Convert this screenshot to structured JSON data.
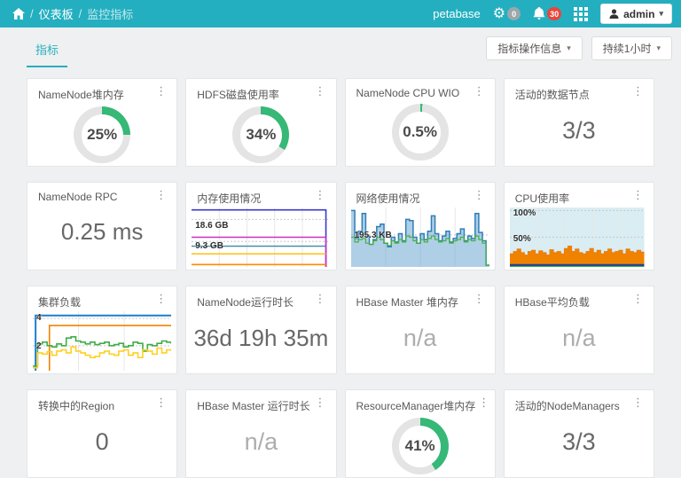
{
  "icons": {
    "kebab": "⋮",
    "caret": "▾",
    "gear": "⚙",
    "slash": "/"
  },
  "colors": {
    "accent": "#24afc0",
    "donut_green": "#36b877",
    "donut_track": "#e4e4e4"
  },
  "header": {
    "breadcrumb": {
      "item1": "仪表板",
      "item2": "监控指标"
    },
    "brand": "petabase",
    "gear_badge": "0",
    "bell_badge": "30",
    "user_label": "admin"
  },
  "toolbar": {
    "tab": "指标",
    "ops_button": "指标操作信息",
    "duration_button": "持续1小时"
  },
  "cards": [
    {
      "title": "NameNode堆内存",
      "type": "donut",
      "value": "25%",
      "percent": 25
    },
    {
      "title": "HDFS磁盘使用率",
      "type": "donut",
      "value": "34%",
      "percent": 34
    },
    {
      "title": "NameNode CPU WIO",
      "type": "donut",
      "value": "0.5%",
      "percent": 0.5
    },
    {
      "title": "活动的数据节点",
      "type": "number",
      "value": "3/3"
    },
    {
      "title": "NameNode RPC",
      "type": "number",
      "value": "0.25 ms"
    },
    {
      "title": "内存使用情况",
      "type": "chart",
      "labels": [
        {
          "text": "18.6 GB"
        },
        {
          "text": "9.3 GB"
        }
      ]
    },
    {
      "title": "网络使用情况",
      "type": "chart",
      "labels": [
        {
          "text": "195.3 KB"
        }
      ]
    },
    {
      "title": "CPU使用率",
      "type": "chart",
      "labels": [
        {
          "text": "100%"
        },
        {
          "text": "50%"
        }
      ]
    },
    {
      "title": "集群负载",
      "type": "chart",
      "labels": [
        {
          "text": "4"
        },
        {
          "text": "2"
        }
      ]
    },
    {
      "title": "NameNode运行时长",
      "type": "number",
      "value": "36d 19h 35m"
    },
    {
      "title": "HBase Master 堆内存",
      "type": "na",
      "value": "n/a"
    },
    {
      "title": "HBase平均负载",
      "type": "na",
      "value": "n/a"
    },
    {
      "title": "转换中的Region",
      "type": "number",
      "value": "0"
    },
    {
      "title": "HBase Master 运行时长",
      "type": "na",
      "value": "n/a"
    },
    {
      "title": "ResourceManager堆内存",
      "type": "donut",
      "value": "41%",
      "percent": 41
    },
    {
      "title": "活动的NodeManagers",
      "type": "number",
      "value": "3/3"
    }
  ],
  "chart_data": [
    {
      "type": "line",
      "title": "内存使用情况",
      "unit": "GB",
      "tick_labels": [
        "18.6 GB",
        "9.3 GB"
      ],
      "note": "flat horizontal usage lines; top two series drop to zero at right edge",
      "spec": {
        "vgrid": [
          20,
          40,
          60,
          80
        ],
        "hgrid": [
          20,
          57
        ],
        "series": [
          {
            "name": "total",
            "color": "#3939cf",
            "w": 1.6,
            "kind": "level",
            "level": 96,
            "xmax": 97,
            "drop": true
          },
          {
            "name": "used-hi",
            "color": "#cb2ecb",
            "w": 1.6,
            "kind": "level",
            "level": 50,
            "xmax": 97,
            "drop": true
          },
          {
            "name": "cached",
            "color": "#3a87ad",
            "w": 1.4,
            "kind": "level",
            "level": 35,
            "xmax": 97
          },
          {
            "name": "buffered",
            "color": "#ffc012",
            "w": 1.6,
            "kind": "level",
            "level": 22,
            "xmax": 97
          },
          {
            "name": "used-lo",
            "color": "#ff8b00",
            "w": 1.6,
            "kind": "level",
            "level": 4,
            "xmax": 97
          }
        ]
      }
    },
    {
      "type": "line",
      "title": "网络使用情况",
      "unit": "KB",
      "tick_labels": [
        "195.3 KB"
      ],
      "spec": {
        "vgrid": [
          25,
          50,
          75
        ],
        "hgrid": [
          46
        ],
        "series": [
          {
            "name": "in",
            "color": "#2e7fb8",
            "w": 1.5,
            "kind": "steps",
            "fill": "rgba(110,168,212,0.55)",
            "values": [
              95,
              48,
              60,
              90,
              52,
              38,
              46,
              68,
              72,
              40,
              34,
              50,
              42,
              56,
              44,
              80,
              78,
              50,
              40,
              56,
              46,
              60,
              86,
              56,
              44,
              52,
              60,
              42,
              48,
              56,
              64,
              44,
              52,
              48,
              90,
              58,
              44,
              3,
              3
            ]
          },
          {
            "name": "out",
            "color": "#43b13f",
            "w": 1.2,
            "kind": "steps",
            "values": [
              50,
              42,
              46,
              48,
              40,
              38,
              44,
              50,
              46,
              40,
              36,
              44,
              40,
              46,
              42,
              52,
              50,
              44,
              40,
              46,
              42,
              48,
              52,
              46,
              42,
              44,
              48,
              40,
              44,
              46,
              50,
              42,
              46,
              44,
              52,
              46,
              40,
              3,
              3
            ]
          }
        ]
      }
    },
    {
      "type": "area",
      "title": "CPU使用率",
      "unit": "%",
      "tick_labels": [
        "100%",
        "50%"
      ],
      "spec": {
        "bg": "#d9edf3",
        "right_gap": 3,
        "vgrid": [
          20,
          40,
          60,
          80
        ],
        "hgrid": [
          5,
          50
        ],
        "series": [
          {
            "name": "user",
            "color": "#e87d0d",
            "w": 1,
            "kind": "steps",
            "fill": "#f08200",
            "xmax": 97,
            "values": [
              22,
              26,
              30,
              24,
              20,
              26,
              28,
              22,
              27,
              24,
              20,
              29,
              24,
              26,
              22,
              31,
              35,
              26,
              30,
              24,
              22,
              26,
              31,
              24,
              28,
              22,
              26,
              30,
              24,
              26,
              28,
              22,
              30,
              26,
              24,
              28,
              25,
              23
            ]
          },
          {
            "name": "system",
            "color": "#1c3f94",
            "w": 2.5,
            "kind": "level",
            "level": 3,
            "xmax": 97
          },
          {
            "name": "iowait",
            "color": "#3fae49",
            "w": 1.2,
            "kind": "level",
            "level": 0.8,
            "xmax": 100
          }
        ]
      }
    },
    {
      "type": "line",
      "title": "集群负载",
      "unit": "",
      "tick_labels": [
        "4",
        "2"
      ],
      "spec": {
        "vgrid": [
          33,
          66
        ],
        "hgrid": [
          12,
          58
        ],
        "series": [
          {
            "name": "nodes",
            "color": "#1f7ecb",
            "w": 2,
            "kind": "level",
            "level": 93,
            "x0": 2
          },
          {
            "name": "cpus",
            "color": "#f08200",
            "w": 1.6,
            "kind": "level",
            "level": 76,
            "x0": 12
          },
          {
            "name": "load-1min",
            "color": "#3fae49",
            "w": 1.6,
            "kind": "steps",
            "values": [
              8,
              45,
              48,
              42,
              40,
              45,
              42,
              55,
              57,
              50,
              48,
              45,
              48,
              44,
              46,
              48,
              42,
              44,
              46,
              40,
              42,
              48,
              46,
              33,
              44,
              42,
              46,
              50,
              48,
              45
            ]
          },
          {
            "name": "load-5min",
            "color": "#ffd022",
            "w": 1.6,
            "kind": "steps",
            "values": [
              5,
              30,
              28,
              32,
              26,
              33,
              35,
              30,
              40,
              33,
              30,
              26,
              22,
              24,
              30,
              33,
              28,
              26,
              33,
              35,
              26,
              30,
              22,
              35,
              33,
              28,
              38,
              30,
              35,
              33
            ]
          }
        ]
      }
    }
  ]
}
